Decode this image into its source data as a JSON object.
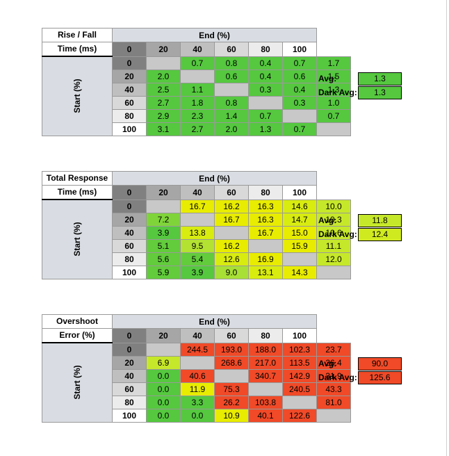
{
  "chart_data": [
    {
      "type": "table",
      "title": [
        "Rise / Fall",
        "Time (ms)"
      ],
      "col_header": "End (%)",
      "row_header": "Start (%)",
      "columns": [
        "0",
        "20",
        "40",
        "60",
        "80",
        "100"
      ],
      "rows": [
        "0",
        "20",
        "40",
        "60",
        "80",
        "100"
      ],
      "values": [
        [
          null,
          0.7,
          0.8,
          0.4,
          0.7,
          1.7
        ],
        [
          2.0,
          null,
          0.6,
          0.4,
          0.6,
          1.5
        ],
        [
          2.5,
          1.1,
          null,
          0.3,
          0.4,
          1.3
        ],
        [
          2.7,
          1.8,
          0.8,
          null,
          0.3,
          1.0
        ],
        [
          2.9,
          2.3,
          1.4,
          0.7,
          null,
          0.7
        ],
        [
          3.1,
          2.7,
          2.0,
          1.3,
          0.7,
          null
        ]
      ],
      "colors": [
        [
          "#c8c8c8",
          "#55c83f",
          "#55c83f",
          "#55c83f",
          "#55c83f",
          "#55c83f"
        ],
        [
          "#55c83f",
          "#c8c8c8",
          "#55c83f",
          "#55c83f",
          "#55c83f",
          "#55c83f"
        ],
        [
          "#55c83f",
          "#55c83f",
          "#c8c8c8",
          "#55c83f",
          "#55c83f",
          "#55c83f"
        ],
        [
          "#55c83f",
          "#55c83f",
          "#55c83f",
          "#c8c8c8",
          "#55c83f",
          "#55c83f"
        ],
        [
          "#55c83f",
          "#55c83f",
          "#55c83f",
          "#55c83f",
          "#c8c8c8",
          "#55c83f"
        ],
        [
          "#55c83f",
          "#55c83f",
          "#55c83f",
          "#55c83f",
          "#55c83f",
          "#c8c8c8"
        ]
      ],
      "avg_label": "Avg:",
      "avg": "1.3",
      "avg_color": "#55c83f",
      "dark_avg_label": "Dark Avg:",
      "dark_avg": "1.3",
      "dark_avg_color": "#55c83f"
    },
    {
      "type": "table",
      "title": [
        "Total Response",
        "Time (ms)"
      ],
      "col_header": "End (%)",
      "row_header": "Start (%)",
      "columns": [
        "0",
        "20",
        "40",
        "60",
        "80",
        "100"
      ],
      "rows": [
        "0",
        "20",
        "40",
        "60",
        "80",
        "100"
      ],
      "values": [
        [
          null,
          16.7,
          16.2,
          16.3,
          14.6,
          10.0
        ],
        [
          7.2,
          null,
          16.7,
          16.3,
          14.7,
          10.3
        ],
        [
          3.9,
          13.8,
          null,
          16.7,
          15.0,
          10.6
        ],
        [
          5.1,
          9.5,
          16.2,
          null,
          15.9,
          11.1
        ],
        [
          5.6,
          5.4,
          12.6,
          16.9,
          null,
          12.0
        ],
        [
          5.9,
          3.9,
          9.0,
          13.1,
          14.3,
          null
        ]
      ],
      "colors": [
        [
          "#c8c8c8",
          "#e8ec00",
          "#e8ec00",
          "#e8ec00",
          "#d8ec10",
          "#c6e82a"
        ],
        [
          "#7fd43a",
          "#c8c8c8",
          "#e8ec00",
          "#e8ec00",
          "#d8ec10",
          "#c6e82a"
        ],
        [
          "#55c83f",
          "#d8ec10",
          "#c8c8c8",
          "#e8ec00",
          "#e8ec00",
          "#c6e82a"
        ],
        [
          "#62cc3c",
          "#b3e232",
          "#e8ec00",
          "#c8c8c8",
          "#e8ec00",
          "#c6e82a"
        ],
        [
          "#62cc3c",
          "#62cc3c",
          "#d8ec10",
          "#e8ec00",
          "#c8c8c8",
          "#c6e82a"
        ],
        [
          "#62cc3c",
          "#55c83f",
          "#a8e036",
          "#d8ec10",
          "#e8ec00",
          "#c8c8c8"
        ]
      ],
      "avg_label": "Avg:",
      "avg": "11.8",
      "avg_color": "#c6e82a",
      "dark_avg_label": "Dark Avg:",
      "dark_avg": "12.4",
      "dark_avg_color": "#d0ea20"
    },
    {
      "type": "table",
      "title": [
        "Overshoot",
        "Error (%)"
      ],
      "col_header": "End (%)",
      "row_header": "Start (%)",
      "columns": [
        "0",
        "20",
        "40",
        "60",
        "80",
        "100"
      ],
      "rows": [
        "0",
        "20",
        "40",
        "60",
        "80",
        "100"
      ],
      "values": [
        [
          null,
          244.5,
          193.0,
          188.0,
          102.3,
          23.7
        ],
        [
          6.9,
          null,
          268.6,
          217.0,
          113.5,
          26.4
        ],
        [
          0.0,
          40.6,
          null,
          340.7,
          142.9,
          31.9
        ],
        [
          0.0,
          11.9,
          75.3,
          null,
          240.5,
          43.3
        ],
        [
          0.0,
          3.3,
          26.2,
          103.8,
          null,
          81.0
        ],
        [
          0.0,
          0.0,
          10.9,
          40.1,
          122.6,
          null
        ]
      ],
      "colors": [
        [
          "#c8c8c8",
          "#f04a28",
          "#f04a28",
          "#f04a28",
          "#f04a28",
          "#f04a28"
        ],
        [
          "#c6e82a",
          "#c8c8c8",
          "#f04a28",
          "#f04a28",
          "#f04a28",
          "#f04a28"
        ],
        [
          "#55c83f",
          "#f04a28",
          "#c8c8c8",
          "#f04a28",
          "#f04a28",
          "#f04a28"
        ],
        [
          "#55c83f",
          "#e8ec00",
          "#f04a28",
          "#c8c8c8",
          "#f04a28",
          "#f04a28"
        ],
        [
          "#55c83f",
          "#55c83f",
          "#f04a28",
          "#f04a28",
          "#c8c8c8",
          "#f04a28"
        ],
        [
          "#55c83f",
          "#55c83f",
          "#e8ec00",
          "#f04a28",
          "#f04a28",
          "#c8c8c8"
        ]
      ],
      "avg_label": "Avg:",
      "avg": "90.0",
      "avg_color": "#f04a28",
      "dark_avg_label": "Dark Avg:",
      "dark_avg": "125.6",
      "dark_avg_color": "#f04a28"
    }
  ]
}
